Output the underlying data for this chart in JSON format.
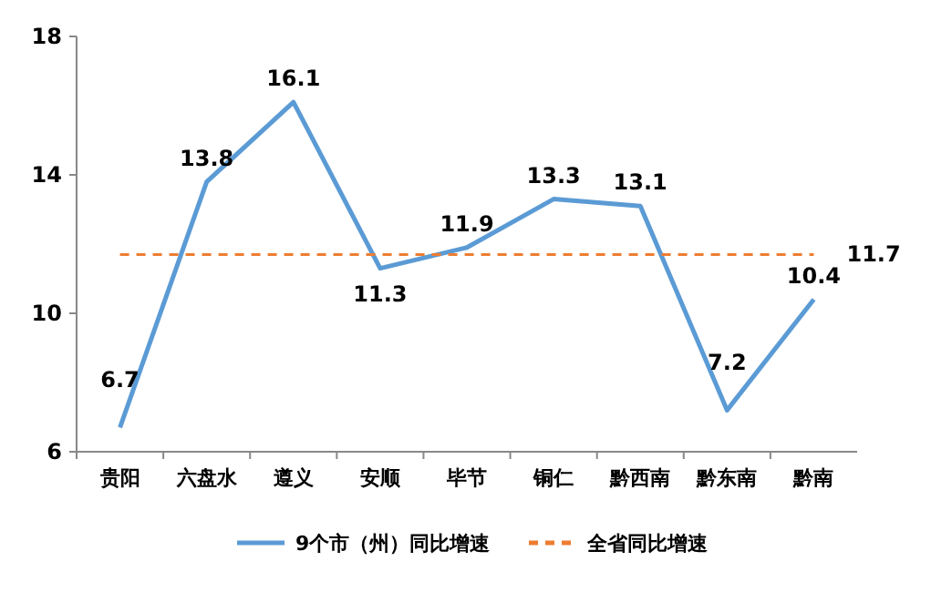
{
  "chart_data": {
    "type": "line",
    "categories": [
      "贵阳",
      "六盘水",
      "遵义",
      "安顺",
      "毕节",
      "铜仁",
      "黔西南",
      "黔东南",
      "黔南"
    ],
    "series": [
      {
        "name": "9个市（州）同比增速",
        "color": "#5b9bd5",
        "values": [
          6.7,
          13.8,
          16.1,
          11.3,
          11.9,
          13.3,
          13.1,
          7.2,
          10.4
        ],
        "line_style": "solid"
      },
      {
        "name": "全省同比增速",
        "color": "#ed7d31",
        "values": [
          11.7,
          11.7,
          11.7,
          11.7,
          11.7,
          11.7,
          11.7,
          11.7,
          11.7
        ],
        "line_style": "dashed",
        "value_labels": [
          null,
          null,
          null,
          null,
          null,
          null,
          null,
          null,
          "11.7"
        ]
      }
    ],
    "data_labels": true,
    "ylim": [
      6,
      18
    ],
    "yticks": [
      6,
      10,
      14,
      18
    ],
    "grid": false,
    "legend": "bottom",
    "marker": "none"
  }
}
